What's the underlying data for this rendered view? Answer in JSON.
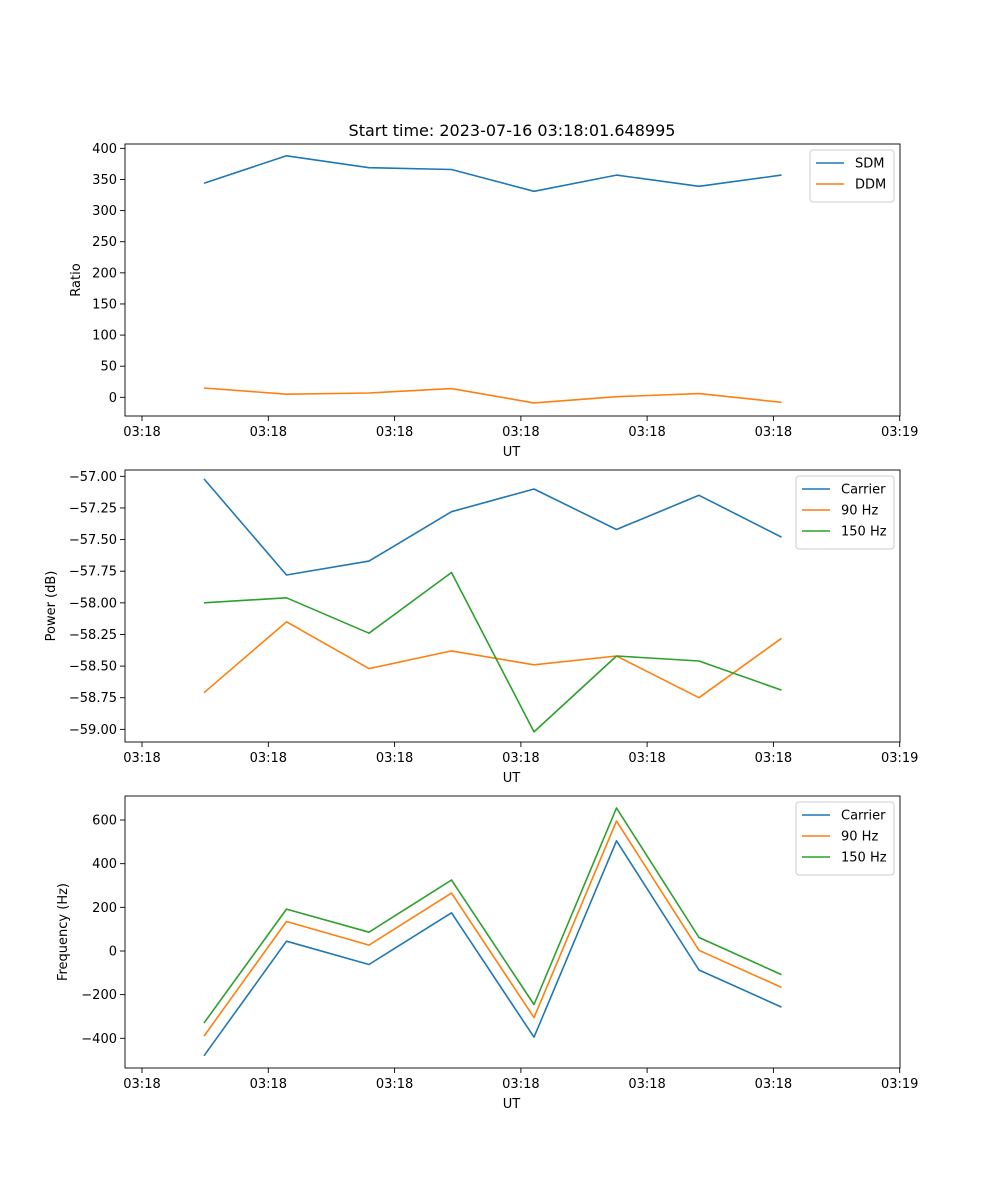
{
  "chart_data": [
    {
      "type": "line",
      "title": "Start time: 2023-07-16 03:18:01.648995",
      "xlabel": "UT",
      "ylabel": "Ratio",
      "xticklabels": [
        "03:18",
        "03:18",
        "03:18",
        "03:18",
        "03:18",
        "03:18",
        "03:18",
        "03:19"
      ],
      "yticks": [
        0,
        50,
        100,
        150,
        200,
        250,
        300,
        350,
        400
      ],
      "yticklabels": [
        "0",
        "50",
        "100",
        "150",
        "200",
        "250",
        "300",
        "350",
        "400"
      ],
      "ylim": [
        -30,
        407
      ],
      "x": [
        1,
        2,
        3,
        4,
        5,
        6,
        7,
        8
      ],
      "xlim": [
        -0.2,
        8.8
      ],
      "legend_position": "upper-right",
      "series": [
        {
          "name": "SDM",
          "color": "#1f77b4",
          "values": [
            344,
            388,
            369,
            366,
            331,
            357,
            339,
            357
          ]
        },
        {
          "name": "DDM",
          "color": "#ff7f0e",
          "values": [
            15,
            5,
            7,
            14,
            -9,
            1,
            6,
            -8
          ]
        }
      ]
    },
    {
      "type": "line",
      "title": "",
      "xlabel": "UT",
      "ylabel": "Power (dB)",
      "xticklabels": [
        "03:18",
        "03:18",
        "03:18",
        "03:18",
        "03:18",
        "03:18",
        "03:18",
        "03:19"
      ],
      "yticks": [
        -57.0,
        -57.25,
        -57.5,
        -57.75,
        -58.0,
        -58.25,
        -58.5,
        -58.75,
        -59.0
      ],
      "yticklabels": [
        "−57.00",
        "−57.25",
        "−57.50",
        "−57.75",
        "−58.00",
        "−58.25",
        "−58.50",
        "−58.75",
        "−59.00"
      ],
      "ylim": [
        -59.1,
        -56.95
      ],
      "x": [
        1,
        2,
        3,
        4,
        5,
        6,
        7,
        8
      ],
      "xlim": [
        -0.2,
        8.8
      ],
      "legend_position": "upper-right",
      "series": [
        {
          "name": "Carrier",
          "color": "#1f77b4",
          "values": [
            -57.02,
            -57.78,
            -57.67,
            -57.28,
            -57.1,
            -57.42,
            -57.15,
            -57.48
          ]
        },
        {
          "name": "90 Hz",
          "color": "#ff7f0e",
          "values": [
            -58.71,
            -58.15,
            -58.52,
            -58.38,
            -58.49,
            -58.42,
            -58.75,
            -58.28
          ]
        },
        {
          "name": "150 Hz",
          "color": "#2ca02c",
          "values": [
            -58.0,
            -57.96,
            -58.24,
            -57.76,
            -59.02,
            -58.42,
            -58.46,
            -58.69
          ]
        }
      ]
    },
    {
      "type": "line",
      "title": "",
      "xlabel": "UT",
      "ylabel": "Frequency (Hz)",
      "xticklabels": [
        "03:18",
        "03:18",
        "03:18",
        "03:18",
        "03:18",
        "03:18",
        "03:18",
        "03:19"
      ],
      "yticks": [
        -400,
        -200,
        0,
        200,
        400,
        600
      ],
      "yticklabels": [
        "−400",
        "−200",
        "0",
        "200",
        "400",
        "600"
      ],
      "ylim": [
        -536,
        710
      ],
      "x": [
        1,
        2,
        3,
        4,
        5,
        6,
        7,
        8
      ],
      "xlim": [
        -0.2,
        8.8
      ],
      "legend_position": "upper-right",
      "series": [
        {
          "name": "Carrier",
          "color": "#1f77b4",
          "values": [
            -480,
            45,
            -62,
            175,
            -395,
            505,
            -87,
            -257
          ]
        },
        {
          "name": "90 Hz",
          "color": "#ff7f0e",
          "values": [
            -390,
            135,
            27,
            265,
            -305,
            595,
            3,
            -167
          ]
        },
        {
          "name": "150 Hz",
          "color": "#2ca02c",
          "values": [
            -330,
            192,
            86,
            325,
            -245,
            655,
            62,
            -108
          ]
        }
      ]
    }
  ]
}
